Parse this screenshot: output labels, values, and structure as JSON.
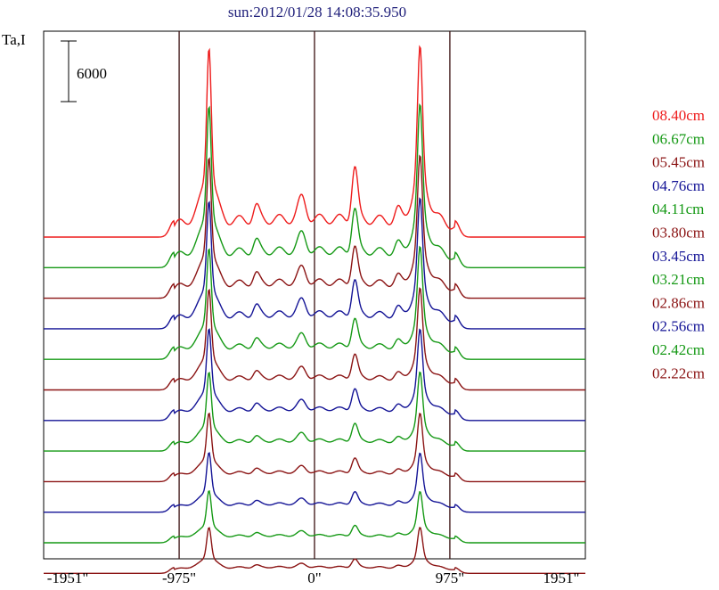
{
  "chart_data": {
    "type": "line",
    "title": "sun:2012/01/28 14:08:35.950",
    "ylabel": "Ta,I",
    "scale_bar": {
      "label": "6000",
      "value": 6000
    },
    "xlim": [
      -1951,
      1951
    ],
    "x_ticks": [
      {
        "value": -1951,
        "label": "-1951\""
      },
      {
        "value": -975,
        "label": "-975\""
      },
      {
        "value": 0,
        "label": "0\""
      },
      {
        "value": 975,
        "label": "975\""
      },
      {
        "value": 1951,
        "label": "1951\""
      }
    ],
    "vlines": [
      -975,
      0,
      975
    ],
    "series": [
      {
        "name": "08.40cm",
        "color": "#ee1c1c",
        "peak_left": 13000,
        "peak_right": 12500,
        "mid_peak": 5200
      },
      {
        "name": "06.67cm",
        "color": "#159915",
        "peak_left": 11000,
        "peak_right": 10600,
        "mid_peak": 4200
      },
      {
        "name": "05.45cm",
        "color": "#8b1414",
        "peak_left": 9500,
        "peak_right": 9200,
        "mid_peak": 3600
      },
      {
        "name": "04.76cm",
        "color": "#141496",
        "peak_left": 8600,
        "peak_right": 8400,
        "mid_peak": 3400
      },
      {
        "name": "04.11cm",
        "color": "#159915",
        "peak_left": 7400,
        "peak_right": 7200,
        "mid_peak": 2700
      },
      {
        "name": "03.80cm",
        "color": "#8b1414",
        "peak_left": 6700,
        "peak_right": 6500,
        "mid_peak": 2300
      },
      {
        "name": "03.45cm",
        "color": "#141496",
        "peak_left": 6100,
        "peak_right": 5800,
        "mid_peak": 2000
      },
      {
        "name": "03.21cm",
        "color": "#159915",
        "peak_left": 5200,
        "peak_right": 5000,
        "mid_peak": 1700
      },
      {
        "name": "02.86cm",
        "color": "#8b1414",
        "peak_left": 4500,
        "peak_right": 4300,
        "mid_peak": 1400
      },
      {
        "name": "02.56cm",
        "color": "#141496",
        "peak_left": 3900,
        "peak_right": 3700,
        "mid_peak": 1200
      },
      {
        "name": "02.42cm",
        "color": "#159915",
        "peak_left": 3400,
        "peak_right": 3200,
        "mid_peak": 1000
      },
      {
        "name": "02.22cm",
        "color": "#8b1414",
        "peak_left": 3000,
        "peak_right": 2900,
        "mid_peak": 800
      }
    ]
  }
}
